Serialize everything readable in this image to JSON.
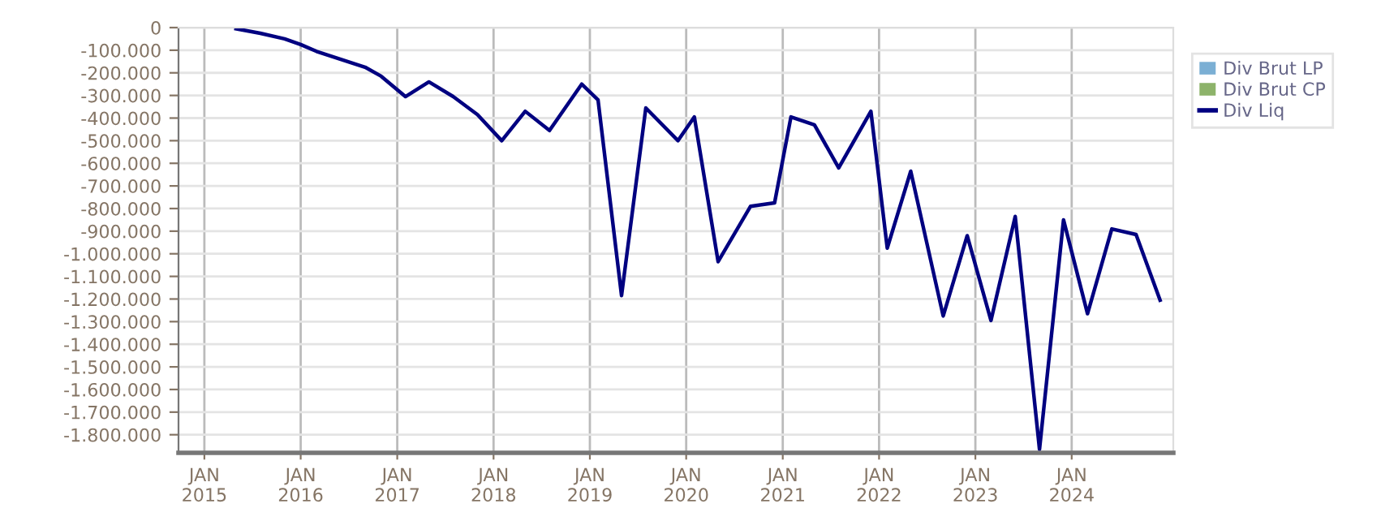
{
  "chart_data": {
    "type": "line",
    "x": [
      "2015-05",
      "2015-08",
      "2015-11",
      "2016-01",
      "2016-03",
      "2016-06",
      "2016-09",
      "2016-11",
      "2017-02",
      "2017-05",
      "2017-08",
      "2017-11",
      "2018-02",
      "2018-05",
      "2018-08",
      "2018-12",
      "2019-02",
      "2019-05",
      "2019-08",
      "2019-12",
      "2020-02",
      "2020-05",
      "2020-09",
      "2020-12",
      "2021-02",
      "2021-05",
      "2021-08",
      "2021-12",
      "2022-02",
      "2022-05",
      "2022-09",
      "2022-12",
      "2023-03",
      "2023-06",
      "2023-09",
      "2023-12",
      "2024-03",
      "2024-06",
      "2024-09",
      "2024-12"
    ],
    "series": [
      {
        "name": "Div Brut LP",
        "type": "bar",
        "color": "#7bafd4",
        "values": [
          null,
          null,
          null,
          null,
          null,
          null,
          null,
          null,
          null,
          null,
          null,
          null,
          null,
          null,
          null,
          null,
          null,
          null,
          null,
          null,
          null,
          null,
          null,
          null,
          null,
          null,
          null,
          null,
          null,
          null,
          null,
          null,
          null,
          null,
          null,
          null,
          null,
          null,
          null,
          null
        ]
      },
      {
        "name": "Div Brut CP",
        "type": "bar",
        "color": "#8db36a",
        "values": [
          null,
          null,
          null,
          null,
          null,
          null,
          null,
          null,
          null,
          null,
          null,
          null,
          null,
          null,
          null,
          null,
          null,
          null,
          null,
          null,
          null,
          null,
          null,
          null,
          null,
          null,
          null,
          null,
          null,
          null,
          null,
          null,
          null,
          null,
          null,
          null,
          null,
          null,
          null,
          null
        ]
      },
      {
        "name": "Div Liq",
        "color": "#000080",
        "values": [
          -5000,
          -25000,
          -50000,
          -75000,
          -105000,
          -140000,
          -175000,
          -215000,
          -305000,
          -240000,
          -305000,
          -385000,
          -500000,
          -370000,
          -455000,
          -250000,
          -320000,
          -1185000,
          -355000,
          -500000,
          -395000,
          -1035000,
          -790000,
          -775000,
          -395000,
          -430000,
          -620000,
          -370000,
          -975000,
          -635000,
          -1275000,
          -920000,
          -1295000,
          -835000,
          -1865000,
          -850000,
          -1265000,
          -890000,
          -915000,
          -1205000
        ]
      }
    ],
    "xlim": [
      "2014-09-25",
      "2025-01-20"
    ],
    "xticks": [
      {
        "value": "2015-01",
        "label": "JAN\n2015"
      },
      {
        "value": "2016-01",
        "label": "JAN\n2016"
      },
      {
        "value": "2017-01",
        "label": "JAN\n2017"
      },
      {
        "value": "2018-01",
        "label": "JAN\n2018"
      },
      {
        "value": "2019-01",
        "label": "JAN\n2019"
      },
      {
        "value": "2020-01",
        "label": "JAN\n2020"
      },
      {
        "value": "2021-01",
        "label": "JAN\n2021"
      },
      {
        "value": "2022-01",
        "label": "JAN\n2022"
      },
      {
        "value": "2023-01",
        "label": "JAN\n2023"
      },
      {
        "value": "2024-01",
        "label": "JAN\n2024"
      }
    ],
    "ylim": [
      -1880000,
      0
    ],
    "yticks": [
      0,
      {
        "value": -100000,
        "label": "-100.000"
      },
      {
        "value": -200000,
        "label": "-200.000"
      },
      {
        "value": -300000,
        "label": "-300.000"
      },
      {
        "value": -400000,
        "label": "-400.000"
      },
      {
        "value": -500000,
        "label": "-500.000"
      },
      {
        "value": -600000,
        "label": "-600.000"
      },
      {
        "value": -700000,
        "label": "-700.000"
      },
      {
        "value": -800000,
        "label": "-800.000"
      },
      {
        "value": -900000,
        "label": "-900.000"
      },
      {
        "value": -1000000,
        "label": "-1.000.000"
      },
      {
        "value": -1100000,
        "label": "-1.100.000"
      },
      {
        "value": -1200000,
        "label": "-1.200.000"
      },
      {
        "value": -1300000,
        "label": "-1.300.000"
      },
      {
        "value": -1400000,
        "label": "-1.400.000"
      },
      {
        "value": -1500000,
        "label": "-1.500.000"
      },
      {
        "value": -1600000,
        "label": "-1.600.000"
      },
      {
        "value": -1700000,
        "label": "-1.700.000"
      },
      {
        "value": -1800000,
        "label": "-1.800.000"
      }
    ],
    "grid": true,
    "legend": "top right"
  }
}
